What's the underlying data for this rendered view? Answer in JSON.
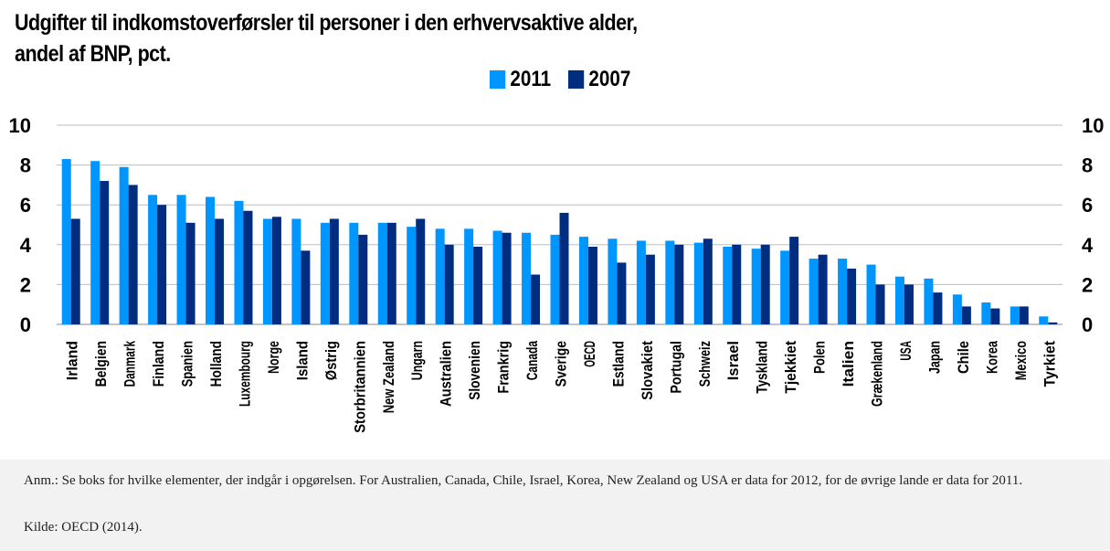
{
  "title_line1": "Udgifter til indkomstoverførsler til personer i den erhvervsaktive alder,",
  "title_line2": "andel af BNP, pct.",
  "note": "Anm.: Se boks for hvilke elementer, der indgår i opgørelsen. For Australien, Canada, Chile, Israel, Korea, New Zealand og USA er data for 2012, for de øvrige lande er data for 2011.",
  "source": "Kilde: OECD (2014).",
  "chart_data": {
    "type": "bar",
    "title": "Udgifter til indkomstoverførsler til personer i den erhvervsaktive alder, andel af BNP, pct.",
    "xlabel": "",
    "ylabel": "",
    "ylim": [
      0,
      10
    ],
    "yticks": [
      0,
      2,
      4,
      6,
      8,
      10
    ],
    "grid": true,
    "legend_position": "top-center",
    "categories": [
      "Irland",
      "Belgien",
      "Danmark",
      "Finland",
      "Spanien",
      "Holland",
      "Luxembourg",
      "Norge",
      "Island",
      "Østrig",
      "Storbritannien",
      "New Zealand",
      "Ungarn",
      "Australien",
      "Slovenien",
      "Frankrig",
      "Canada",
      "Sverige",
      "OECD",
      "Estland",
      "Slovakiet",
      "Portugal",
      "Schweiz",
      "Israel",
      "Tyskland",
      "Tjekkiet",
      "Polen",
      "Italien",
      "Grækenland",
      "USA",
      "Japan",
      "Chile",
      "Korea",
      "Mexico",
      "Tyrkiet"
    ],
    "series": [
      {
        "name": "2011",
        "color": "#0096ff",
        "values": [
          8.3,
          8.2,
          7.9,
          6.5,
          6.5,
          6.4,
          6.2,
          5.3,
          5.3,
          5.1,
          5.1,
          5.1,
          4.9,
          4.8,
          4.8,
          4.7,
          4.6,
          4.5,
          4.4,
          4.3,
          4.2,
          4.2,
          4.1,
          3.9,
          3.8,
          3.7,
          3.3,
          3.3,
          3.0,
          2.4,
          2.3,
          1.5,
          1.1,
          0.9,
          0.4
        ]
      },
      {
        "name": "2007",
        "color": "#002d80",
        "values": [
          5.3,
          7.2,
          7.0,
          6.0,
          5.1,
          5.3,
          5.7,
          5.4,
          3.7,
          5.3,
          4.5,
          5.1,
          5.3,
          4.0,
          3.9,
          4.6,
          2.5,
          5.6,
          3.9,
          3.1,
          3.5,
          4.0,
          4.3,
          4.0,
          4.0,
          4.4,
          3.5,
          2.8,
          2.0,
          2.0,
          1.6,
          0.9,
          0.8,
          0.9,
          0.1
        ]
      }
    ]
  }
}
